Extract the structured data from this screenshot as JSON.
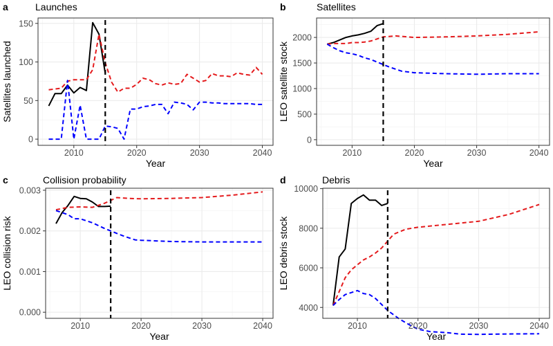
{
  "chart_data": [
    {
      "type": "line",
      "panel_label": "a",
      "title": "Launches",
      "xlabel": "Year",
      "ylabel": "Satellites launched",
      "xlim": [
        2004.3,
        2041.7
      ],
      "ylim": [
        -8,
        157
      ],
      "xticks": [
        2010,
        2020,
        2030,
        2040
      ],
      "xtick_labels": [
        "2010",
        "2020",
        "2030",
        "2040"
      ],
      "yticks": [
        0,
        50,
        100,
        150
      ],
      "ytick_labels": [
        "0",
        "50",
        "100",
        "150"
      ],
      "grid": true,
      "vline": 2015,
      "series": [
        {
          "color": "#000000",
          "dash": "solid",
          "points": [
            [
              2006,
              43
            ],
            [
              2007,
              59
            ],
            [
              2008,
              59
            ],
            [
              2009,
              70
            ],
            [
              2010,
              60
            ],
            [
              2011,
              67
            ],
            [
              2012,
              63
            ],
            [
              2013,
              151
            ],
            [
              2014,
              136
            ],
            [
              2015,
              85
            ]
          ]
        },
        {
          "color": "#e41a1c",
          "dash": "dashed",
          "points": [
            [
              2006,
              64
            ],
            [
              2007,
              65
            ],
            [
              2008,
              66
            ],
            [
              2009,
              75
            ],
            [
              2010,
              77
            ],
            [
              2011,
              77
            ],
            [
              2012,
              77
            ],
            [
              2013,
              90
            ],
            [
              2014,
              136
            ],
            [
              2015,
              99
            ],
            [
              2016,
              74
            ],
            [
              2017,
              61
            ],
            [
              2018,
              66
            ],
            [
              2019,
              66
            ],
            [
              2020,
              71
            ],
            [
              2021,
              79
            ],
            [
              2022,
              77
            ],
            [
              2023,
              72
            ],
            [
              2024,
              70
            ],
            [
              2025,
              73
            ],
            [
              2026,
              71
            ],
            [
              2027,
              72
            ],
            [
              2028,
              84
            ],
            [
              2029,
              79
            ],
            [
              2030,
              74
            ],
            [
              2031,
              76
            ],
            [
              2032,
              85
            ],
            [
              2033,
              82
            ],
            [
              2034,
              82
            ],
            [
              2035,
              81
            ],
            [
              2036,
              86
            ],
            [
              2037,
              84
            ],
            [
              2038,
              83
            ],
            [
              2039,
              93
            ],
            [
              2040,
              84
            ]
          ]
        },
        {
          "color": "#0000ff",
          "dash": "dashed",
          "points": [
            [
              2006,
              0
            ],
            [
              2007,
              0
            ],
            [
              2008,
              0
            ],
            [
              2009,
              76
            ],
            [
              2010,
              0
            ],
            [
              2011,
              44
            ],
            [
              2012,
              0
            ],
            [
              2013,
              0
            ],
            [
              2014,
              0
            ],
            [
              2015,
              17
            ],
            [
              2016,
              16
            ],
            [
              2017,
              14
            ],
            [
              2018,
              0
            ],
            [
              2019,
              39
            ],
            [
              2020,
              39
            ],
            [
              2021,
              42
            ],
            [
              2022,
              43
            ],
            [
              2023,
              45
            ],
            [
              2024,
              45
            ],
            [
              2025,
              33
            ],
            [
              2026,
              48
            ],
            [
              2027,
              47
            ],
            [
              2028,
              45
            ],
            [
              2029,
              38
            ],
            [
              2030,
              48
            ],
            [
              2031,
              48
            ],
            [
              2032,
              47
            ],
            [
              2033,
              47
            ],
            [
              2034,
              46
            ],
            [
              2035,
              46
            ],
            [
              2036,
              46
            ],
            [
              2037,
              46
            ],
            [
              2038,
              46
            ],
            [
              2039,
              45
            ],
            [
              2040,
              45
            ]
          ]
        }
      ]
    },
    {
      "type": "line",
      "panel_label": "b",
      "title": "Satellites",
      "xlabel": "Year",
      "ylabel": "LEO satellite stock",
      "xlim": [
        2004.3,
        2041.7
      ],
      "ylim": [
        -110,
        2380
      ],
      "xticks": [
        2010,
        2020,
        2030,
        2040
      ],
      "xtick_labels": [
        "2010",
        "2020",
        "2030",
        "2040"
      ],
      "yticks": [
        0,
        500,
        1000,
        1500,
        2000
      ],
      "ytick_labels": [
        "0",
        "500",
        "1000",
        "1500",
        "2000"
      ],
      "grid": true,
      "vline": 2015,
      "series": [
        {
          "color": "#000000",
          "dash": "solid",
          "points": [
            [
              2006,
              1870
            ],
            [
              2007,
              1900
            ],
            [
              2008,
              1950
            ],
            [
              2009,
              2000
            ],
            [
              2010,
              2030
            ],
            [
              2011,
              2050
            ],
            [
              2012,
              2080
            ],
            [
              2013,
              2120
            ],
            [
              2014,
              2230
            ],
            [
              2015,
              2270
            ]
          ]
        },
        {
          "color": "#e41a1c",
          "dash": "dashed",
          "points": [
            [
              2006,
              1870
            ],
            [
              2007,
              1880
            ],
            [
              2008,
              1880
            ],
            [
              2009,
              1880
            ],
            [
              2010,
              1900
            ],
            [
              2011,
              1900
            ],
            [
              2012,
              1910
            ],
            [
              2013,
              1930
            ],
            [
              2014,
              1970
            ],
            [
              2015,
              2010
            ],
            [
              2017,
              2030
            ],
            [
              2020,
              2000
            ],
            [
              2025,
              2010
            ],
            [
              2030,
              2030
            ],
            [
              2035,
              2060
            ],
            [
              2040,
              2110
            ]
          ]
        },
        {
          "color": "#0000ff",
          "dash": "dashed",
          "points": [
            [
              2006,
              1870
            ],
            [
              2007,
              1800
            ],
            [
              2008,
              1740
            ],
            [
              2009,
              1700
            ],
            [
              2010,
              1680
            ],
            [
              2011,
              1650
            ],
            [
              2012,
              1600
            ],
            [
              2013,
              1570
            ],
            [
              2014,
              1520
            ],
            [
              2015,
              1470
            ],
            [
              2016,
              1420
            ],
            [
              2017,
              1380
            ],
            [
              2018,
              1340
            ],
            [
              2020,
              1310
            ],
            [
              2025,
              1290
            ],
            [
              2030,
              1280
            ],
            [
              2035,
              1290
            ],
            [
              2040,
              1290
            ]
          ]
        }
      ]
    },
    {
      "type": "line",
      "panel_label": "c",
      "title": "Collision probability",
      "xlabel": "Year",
      "ylabel": "LEO collision risk",
      "xlim": [
        2004.3,
        2041.7
      ],
      "ylim": [
        -0.00015,
        0.00305
      ],
      "xticks": [
        2010,
        2020,
        2030,
        2040
      ],
      "xtick_labels": [
        "2010",
        "2020",
        "2030",
        "2040"
      ],
      "yticks": [
        0,
        0.001,
        0.002,
        0.003
      ],
      "ytick_labels": [
        "0.000",
        "0.001",
        "0.002",
        "0.003"
      ],
      "grid": true,
      "vline": 2015,
      "series": [
        {
          "color": "#000000",
          "dash": "solid",
          "points": [
            [
              2006,
              0.00218
            ],
            [
              2007,
              0.00245
            ],
            [
              2008,
              0.00263
            ],
            [
              2009,
              0.00285
            ],
            [
              2010,
              0.0028
            ],
            [
              2011,
              0.00279
            ],
            [
              2012,
              0.00271
            ],
            [
              2013,
              0.0026
            ],
            [
              2014,
              0.0026
            ],
            [
              2015,
              0.00261
            ]
          ]
        },
        {
          "color": "#e41a1c",
          "dash": "dashed",
          "points": [
            [
              2006,
              0.00252
            ],
            [
              2008,
              0.00258
            ],
            [
              2010,
              0.00259
            ],
            [
              2012,
              0.00258
            ],
            [
              2014,
              0.00268
            ],
            [
              2016,
              0.00282
            ],
            [
              2018,
              0.0028
            ],
            [
              2020,
              0.00279
            ],
            [
              2025,
              0.0028
            ],
            [
              2030,
              0.00282
            ],
            [
              2035,
              0.00288
            ],
            [
              2040,
              0.00296
            ]
          ]
        },
        {
          "color": "#0000ff",
          "dash": "dashed",
          "points": [
            [
              2006,
              0.0025
            ],
            [
              2008,
              0.0024
            ],
            [
              2009,
              0.0023
            ],
            [
              2010,
              0.0023
            ],
            [
              2012,
              0.0022
            ],
            [
              2014,
              0.00206
            ],
            [
              2015,
              0.002
            ],
            [
              2017,
              0.00188
            ],
            [
              2019,
              0.00178
            ],
            [
              2020,
              0.00177
            ],
            [
              2025,
              0.00174
            ],
            [
              2030,
              0.00173
            ],
            [
              2035,
              0.00173
            ],
            [
              2040,
              0.00173
            ]
          ]
        }
      ]
    },
    {
      "type": "line",
      "panel_label": "d",
      "title": "Debris",
      "xlabel": "Year",
      "ylabel": "LEO debris stock",
      "xlim": [
        2004.3,
        2041.7
      ],
      "ylim": [
        3450,
        10020
      ],
      "xticks": [
        2010,
        2020,
        2030,
        2040
      ],
      "xtick_labels": [
        "2010",
        "2020",
        "2030",
        "2040"
      ],
      "yticks": [
        4000,
        6000,
        8000,
        10000
      ],
      "ytick_labels": [
        "4000",
        "6000",
        "8000",
        "10000"
      ],
      "grid": true,
      "vline": 2015,
      "series": [
        {
          "color": "#000000",
          "dash": "solid",
          "points": [
            [
              2006,
              4100
            ],
            [
              2007,
              6550
            ],
            [
              2008,
              6950
            ],
            [
              2009,
              9250
            ],
            [
              2010,
              9500
            ],
            [
              2011,
              9680
            ],
            [
              2012,
              9420
            ],
            [
              2013,
              9420
            ],
            [
              2014,
              9150
            ],
            [
              2015,
              9250
            ]
          ]
        },
        {
          "color": "#e41a1c",
          "dash": "dashed",
          "points": [
            [
              2006,
              4100
            ],
            [
              2007,
              4800
            ],
            [
              2008,
              5500
            ],
            [
              2009,
              5900
            ],
            [
              2010,
              6150
            ],
            [
              2011,
              6400
            ],
            [
              2012,
              6550
            ],
            [
              2013,
              6750
            ],
            [
              2014,
              7000
            ],
            [
              2015,
              7350
            ],
            [
              2016,
              7700
            ],
            [
              2018,
              7950
            ],
            [
              2020,
              8050
            ],
            [
              2025,
              8200
            ],
            [
              2030,
              8350
            ],
            [
              2035,
              8700
            ],
            [
              2040,
              9200
            ]
          ]
        },
        {
          "color": "#0000ff",
          "dash": "dashed",
          "points": [
            [
              2006,
              4100
            ],
            [
              2007,
              4400
            ],
            [
              2008,
              4650
            ],
            [
              2009,
              4750
            ],
            [
              2010,
              4850
            ],
            [
              2011,
              4700
            ],
            [
              2012,
              4650
            ],
            [
              2013,
              4450
            ],
            [
              2014,
              4150
            ],
            [
              2015,
              3850
            ],
            [
              2017,
              3400
            ],
            [
              2019,
              3050
            ],
            [
              2020,
              2900
            ],
            [
              2022,
              2780
            ],
            [
              2025,
              2720
            ],
            [
              2027,
              2650
            ],
            [
              2030,
              2640
            ],
            [
              2035,
              2660
            ],
            [
              2040,
              2670
            ]
          ]
        }
      ]
    }
  ]
}
